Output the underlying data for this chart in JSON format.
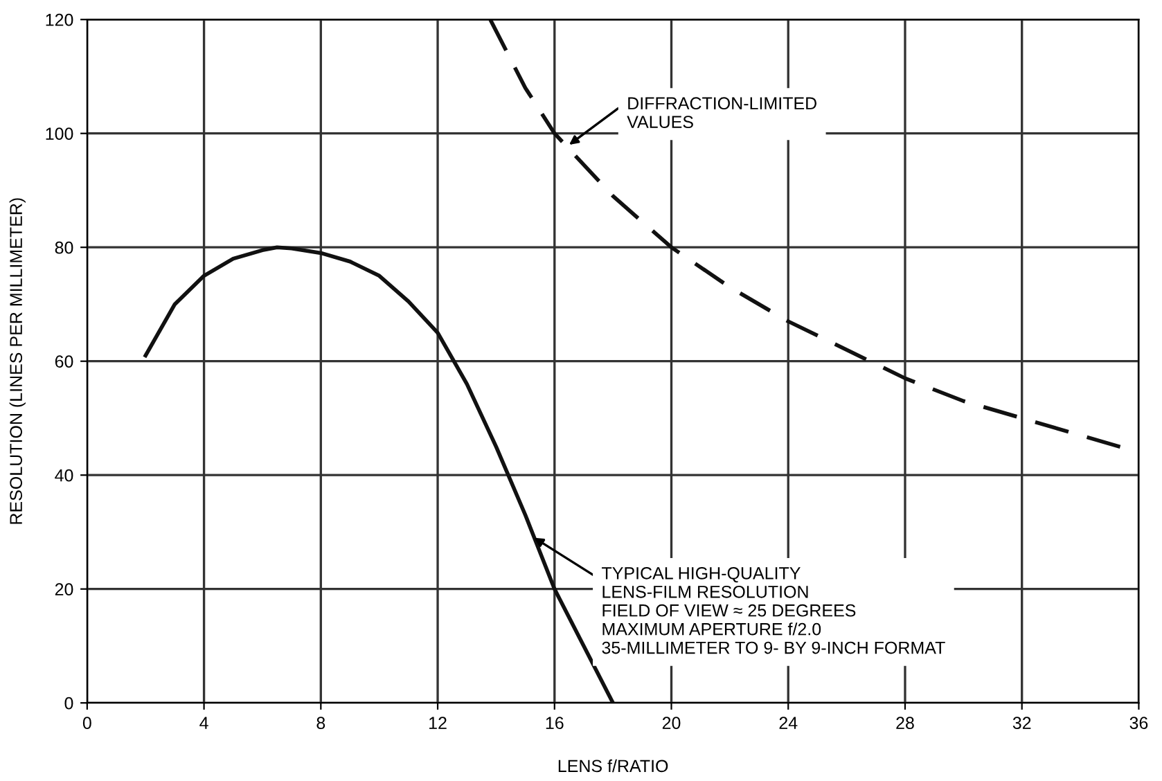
{
  "chart_data": {
    "type": "line",
    "xlabel": "LENS f/RATIO",
    "ylabel": "RESOLUTION (LINES PER MILLIMETER)",
    "xlim": [
      0,
      36
    ],
    "ylim": [
      0,
      120
    ],
    "xticks": [
      0,
      4,
      8,
      12,
      16,
      20,
      24,
      28,
      32,
      36
    ],
    "yticks": [
      0,
      20,
      40,
      60,
      80,
      100,
      120
    ],
    "grid": true,
    "legend": false,
    "marker": "none",
    "series": [
      {
        "color": "#111111",
        "line_style": "solid",
        "x": [
          2,
          3,
          4,
          5,
          6,
          6.5,
          7,
          8,
          9,
          10,
          11,
          12,
          13,
          14,
          15,
          16,
          17,
          18
        ],
        "values": [
          61,
          70,
          75,
          78,
          79.5,
          80,
          79.8,
          79,
          77.5,
          75,
          70.5,
          65,
          56,
          45,
          33,
          20,
          10,
          0
        ]
      },
      {
        "color": "#111111",
        "line_style": "dashed",
        "x": [
          13.8,
          15,
          16,
          18,
          20,
          22,
          24,
          26,
          28,
          30,
          32,
          34,
          36
        ],
        "values": [
          120,
          108,
          100,
          89,
          80,
          73,
          67,
          62,
          57,
          53,
          50,
          47,
          44
        ]
      }
    ],
    "annotations": [
      {
        "text": "DIFFRACTION-LIMITED\nVALUES",
        "x": 16.5,
        "y": 98
      },
      {
        "text": "TYPICAL HIGH-QUALITY\nLENS-FILM RESOLUTION\nFIELD OF VIEW ≈ 25 DEGREES\nMAXIMUM APERTURE f/2.0\n35-MILLIMETER TO 9- BY 9-INCH FORMAT",
        "x": 15.3,
        "y": 29
      }
    ]
  }
}
